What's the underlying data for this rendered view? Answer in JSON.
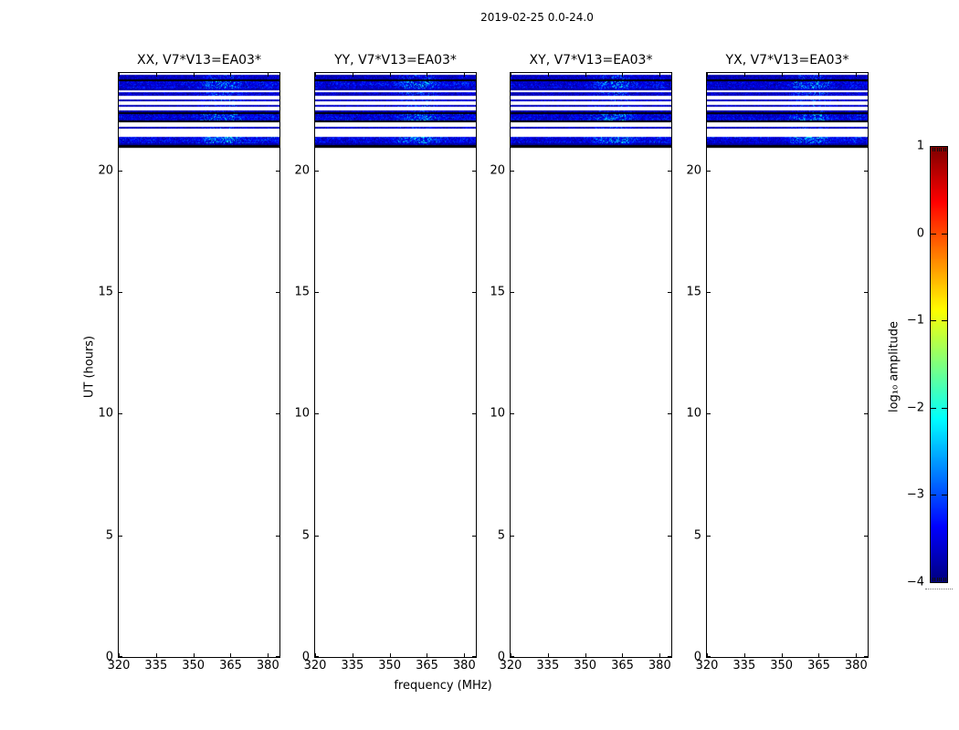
{
  "figure": {
    "title": "2019-02-25 0.0-24.0",
    "background": "#ffffff"
  },
  "axes": {
    "xlabel": "frequency (MHz)",
    "ylabel": "UT (hours)",
    "x_tick_labels": [
      "320",
      "335",
      "350",
      "365",
      "380"
    ],
    "y_tick_labels": [
      "0",
      "5",
      "10",
      "15",
      "20"
    ],
    "x_range_mhz": [
      320,
      384.3
    ],
    "y_range_hours": [
      0,
      24
    ]
  },
  "panels": [
    {
      "id": "xx",
      "title": "XX, V7*V13=EA03*",
      "seed": 1013904223
    },
    {
      "id": "yy",
      "title": "YY, V7*V13=EA03*",
      "seed": 202203702
    },
    {
      "id": "xy",
      "title": "XY, V7*V13=EA03*",
      "seed": 330339887
    },
    {
      "id": "yx",
      "title": "YX, V7*V13=EA03*",
      "seed": 404741921
    }
  ],
  "colorbar": {
    "label": "log₁₀ amplitude",
    "tick_labels": [
      "1",
      "0",
      "−1",
      "−2",
      "−3",
      "−4"
    ],
    "tick_values": [
      1,
      0,
      -1,
      -2,
      -3,
      -4
    ],
    "value_range": [
      -4,
      1
    ],
    "colormap": "jet"
  },
  "chart_data": {
    "type": "heatmap",
    "title": "2019-02-25 0.0-24.0",
    "subplot_titles": [
      "XX, V7*V13=EA03*",
      "YY, V7*V13=EA03*",
      "XY, V7*V13=EA03*",
      "YX, V7*V13=EA03*"
    ],
    "xlabel": "frequency (MHz)",
    "ylabel": "UT (hours)",
    "x_ticks": [
      320,
      335,
      350,
      365,
      380
    ],
    "y_ticks": [
      0,
      5,
      10,
      15,
      20
    ],
    "x_range": [
      320,
      384.3
    ],
    "y_range": [
      0,
      24
    ],
    "value_label": "log₁₀ amplitude",
    "value_range": [
      -4,
      1
    ],
    "colorbar_ticks": [
      1,
      0,
      -1,
      -2,
      -3,
      -4
    ],
    "colormap": "jet",
    "note": "All four polarization panels show data only between about 20.9 and 24.0 UT, as horizontal time-row bands of faint blue noise (log10 amplitude ≈ -4 to -2.5) interleaved with black rows and blank gaps; brighter cyan patches (≈ -2.5 to -2) concentrate near 355-370 MHz. The rest of the 0-24 h range is blank (no data).",
    "bands": [
      {
        "ut_from": 23.93,
        "ut_to": 23.72,
        "intensity": 0.5,
        "style": "noise"
      },
      {
        "ut_from": 23.72,
        "ut_to": 23.66,
        "intensity": 0.0,
        "style": "black"
      },
      {
        "ut_from": 23.66,
        "ut_to": 23.38,
        "intensity": 0.8,
        "style": "noise"
      },
      {
        "ut_from": 23.38,
        "ut_to": 23.29,
        "intensity": 0.35,
        "style": "noise"
      },
      {
        "ut_from": 23.21,
        "ut_to": 23.06,
        "intensity": 0.6,
        "style": "noise"
      },
      {
        "ut_from": 22.91,
        "ut_to": 22.84,
        "intensity": 0.55,
        "style": "noise"
      },
      {
        "ut_from": 22.69,
        "ut_to": 22.61,
        "intensity": 0.55,
        "style": "noise"
      },
      {
        "ut_from": 22.46,
        "ut_to": 22.39,
        "intensity": 0.45,
        "style": "noise"
      },
      {
        "ut_from": 22.39,
        "ut_to": 22.31,
        "intensity": 0.0,
        "style": "black"
      },
      {
        "ut_from": 22.31,
        "ut_to": 22.05,
        "intensity": 0.75,
        "style": "noise"
      },
      {
        "ut_from": 22.05,
        "ut_to": 21.98,
        "intensity": 0.0,
        "style": "black"
      },
      {
        "ut_from": 21.79,
        "ut_to": 21.71,
        "intensity": 0.5,
        "style": "noise"
      },
      {
        "ut_from": 21.38,
        "ut_to": 21.11,
        "intensity": 0.85,
        "style": "noise"
      },
      {
        "ut_from": 21.11,
        "ut_to": 21.04,
        "intensity": 0.35,
        "style": "noise"
      },
      {
        "ut_from": 21.04,
        "ut_to": 20.93,
        "intensity": 0.0,
        "style": "black"
      }
    ],
    "bright_patch_freq_fractions": [
      0.55,
      0.67,
      0.92
    ],
    "legend_position": "right-colorbar",
    "grid": false
  }
}
